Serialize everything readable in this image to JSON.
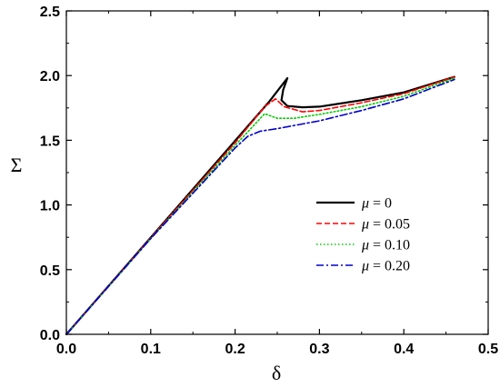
{
  "chart_data": {
    "type": "line",
    "title": "",
    "xlabel": "δ",
    "ylabel": "Σ",
    "xlim": [
      0.0,
      0.5
    ],
    "ylim": [
      0.0,
      2.5
    ],
    "x_ticks": [
      "0.0",
      "0.1",
      "0.2",
      "0.3",
      "0.4",
      "0.5"
    ],
    "y_ticks": [
      "0.0",
      "0.5",
      "1.0",
      "1.5",
      "2.0",
      "2.5"
    ],
    "grid": false,
    "legend_position": "center-right",
    "series": [
      {
        "name": "μ = 0",
        "name_parts": {
          "symbol": "μ",
          "rest": " = 0"
        },
        "color": "#000000",
        "dash": "solid",
        "points": [
          [
            0.0,
            0.0
          ],
          [
            0.1,
            0.748
          ],
          [
            0.2,
            1.496
          ],
          [
            0.24,
            1.795
          ],
          [
            0.262,
            1.98
          ],
          [
            0.257,
            1.89
          ],
          [
            0.255,
            1.81
          ],
          [
            0.262,
            1.765
          ],
          [
            0.28,
            1.755
          ],
          [
            0.3,
            1.76
          ],
          [
            0.35,
            1.81
          ],
          [
            0.4,
            1.87
          ],
          [
            0.46,
            1.99
          ]
        ]
      },
      {
        "name": "μ = 0.05",
        "name_parts": {
          "symbol": "μ",
          "rest": " = 0.05"
        },
        "color": "#ff0000",
        "dash": "dashed",
        "points": [
          [
            0.0,
            0.0
          ],
          [
            0.1,
            0.745
          ],
          [
            0.2,
            1.48
          ],
          [
            0.235,
            1.76
          ],
          [
            0.248,
            1.82
          ],
          [
            0.258,
            1.76
          ],
          [
            0.28,
            1.72
          ],
          [
            0.3,
            1.73
          ],
          [
            0.35,
            1.79
          ],
          [
            0.4,
            1.86
          ],
          [
            0.46,
            1.99
          ]
        ]
      },
      {
        "name": "μ = 0.10",
        "name_parts": {
          "symbol": "μ",
          "rest": " = 0.10"
        },
        "color": "#00cc00",
        "dash": "dotted",
        "points": [
          [
            0.0,
            0.0
          ],
          [
            0.1,
            0.74
          ],
          [
            0.2,
            1.46
          ],
          [
            0.22,
            1.6
          ],
          [
            0.235,
            1.705
          ],
          [
            0.25,
            1.67
          ],
          [
            0.27,
            1.67
          ],
          [
            0.3,
            1.7
          ],
          [
            0.35,
            1.76
          ],
          [
            0.4,
            1.84
          ],
          [
            0.46,
            1.98
          ]
        ]
      },
      {
        "name": "μ = 0.20",
        "name_parts": {
          "symbol": "μ",
          "rest": " = 0.20"
        },
        "color": "#0000cc",
        "dash": "dashdot",
        "points": [
          [
            0.0,
            0.0
          ],
          [
            0.1,
            0.74
          ],
          [
            0.2,
            1.44
          ],
          [
            0.215,
            1.53
          ],
          [
            0.23,
            1.57
          ],
          [
            0.25,
            1.59
          ],
          [
            0.3,
            1.65
          ],
          [
            0.35,
            1.73
          ],
          [
            0.4,
            1.82
          ],
          [
            0.46,
            1.97
          ]
        ]
      }
    ]
  }
}
